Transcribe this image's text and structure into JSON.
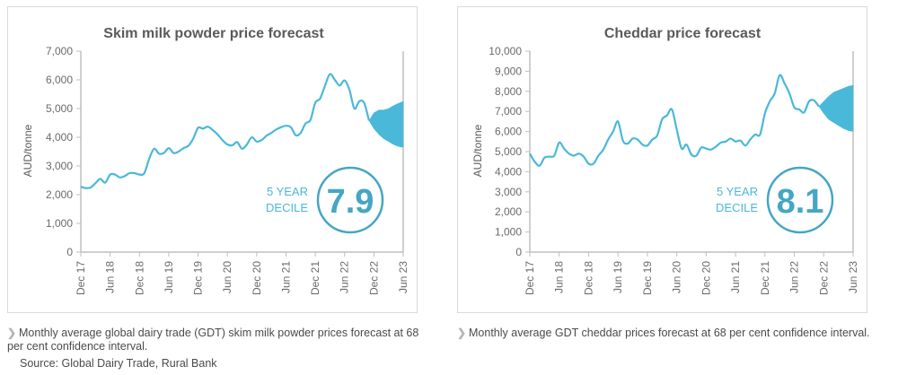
{
  "colors": {
    "line": "#4ab8d9",
    "band": "#4ab8d9",
    "axis": "#bfbfbf",
    "circle": "#45a6c4",
    "text": "#5a5a5a"
  },
  "chart_data": [
    {
      "type": "line",
      "title": "Skim milk powder price forecast",
      "xlabel": "",
      "ylabel": "AUD/tonne",
      "ylim": [
        0,
        7000
      ],
      "yticks": [
        0,
        1000,
        2000,
        3000,
        4000,
        5000,
        6000,
        7000
      ],
      "ytick_labels": [
        "0",
        "1,000",
        "2,000",
        "3,000",
        "4,000",
        "5,000",
        "6,000",
        "7,000"
      ],
      "xtick_labels": [
        "Dec 17",
        "Jun 18",
        "Dec 18",
        "Jun 19",
        "Dec 19",
        "Jun 20",
        "Dec 20",
        "Jun 21",
        "Dec 21",
        "Jun 22",
        "Dec 22",
        "Jun 23"
      ],
      "x_start": "Dec 17",
      "x_end": "Jun 23",
      "x_months_total": 66,
      "grid": false,
      "series": [
        {
          "name": "GDT skim milk powder price (monthly average)",
          "values": [
            2280,
            2230,
            2250,
            2400,
            2550,
            2420,
            2700,
            2700,
            2600,
            2650,
            2750,
            2750,
            2700,
            2750,
            3250,
            3600,
            3430,
            3450,
            3620,
            3450,
            3500,
            3620,
            3700,
            3950,
            4330,
            4300,
            4370,
            4250,
            4100,
            3900,
            3750,
            3720,
            3830,
            3600,
            3750,
            4000,
            3850,
            3900,
            4050,
            4150,
            4270,
            4350,
            4400,
            4350,
            4070,
            4150,
            4480,
            4600,
            5200,
            5350,
            5800,
            6200,
            6000,
            5800,
            5980,
            5650,
            5000,
            5250,
            5200,
            4580
          ]
        }
      ],
      "forecast_band": {
        "name": "Forecast at 68 per cent confidence interval",
        "start_month_index": 59,
        "upper": [
          4580,
          4850,
          4950,
          4950,
          5000,
          5100,
          5180,
          5250
        ],
        "lower": [
          4580,
          4300,
          4100,
          3950,
          3850,
          3750,
          3680,
          3650
        ]
      },
      "decile": {
        "label_line1": "5 YEAR",
        "label_line2": "DECILE",
        "value": "7.9"
      }
    },
    {
      "type": "line",
      "title": "Cheddar price forecast",
      "xlabel": "",
      "ylabel": "AUD/tonne",
      "ylim": [
        0,
        10000
      ],
      "yticks": [
        0,
        1000,
        2000,
        3000,
        4000,
        5000,
        6000,
        7000,
        8000,
        9000,
        10000
      ],
      "ytick_labels": [
        "0",
        "1,000",
        "2,000",
        "3,000",
        "4,000",
        "5,000",
        "6,000",
        "7,000",
        "8,000",
        "9,000",
        "10,000"
      ],
      "xtick_labels": [
        "Dec 17",
        "Jun 18",
        "Dec 18",
        "Jun 19",
        "Dec 19",
        "Jun 20",
        "Dec 20",
        "Jun 21",
        "Dec 21",
        "Jun 22",
        "Dec 22",
        "Jun 23"
      ],
      "x_start": "Dec 17",
      "x_end": "Jun 23",
      "x_months_total": 66,
      "grid": false,
      "series": [
        {
          "name": "GDT cheddar price (monthly average)",
          "values": [
            4900,
            4500,
            4300,
            4700,
            4750,
            4800,
            5450,
            5150,
            4900,
            4800,
            4900,
            4750,
            4400,
            4400,
            4800,
            5100,
            5600,
            6000,
            6500,
            5550,
            5400,
            5650,
            5600,
            5350,
            5300,
            5600,
            5800,
            6600,
            6800,
            7100,
            6100,
            5150,
            5350,
            4850,
            4800,
            5200,
            5150,
            5100,
            5250,
            5450,
            5500,
            5650,
            5500,
            5550,
            5300,
            5600,
            5850,
            5850,
            6900,
            7500,
            7900,
            8800,
            8400,
            7900,
            7200,
            7100,
            6950,
            7500,
            7550,
            7250
          ]
        }
      ],
      "forecast_band": {
        "name": "Forecast at 68 per cent confidence interval",
        "start_month_index": 59,
        "upper": [
          7250,
          7500,
          7750,
          7950,
          8050,
          8150,
          8250,
          8300
        ],
        "lower": [
          7250,
          6900,
          6600,
          6450,
          6300,
          6150,
          6050,
          6000
        ]
      },
      "decile": {
        "label_line1": "5 YEAR",
        "label_line2": "DECILE",
        "value": "8.1"
      }
    }
  ],
  "captions": [
    {
      "text": "Monthly average global dairy trade (GDT) skim milk powder prices forecast at 68 per cent confidence interval.",
      "source": "Source: Global Dairy Trade, Rural Bank"
    },
    {
      "text": "Monthly average GDT cheddar prices forecast at 68 per cent confidence interval."
    }
  ],
  "caption_arrow_icon": "chevron-right-icon"
}
